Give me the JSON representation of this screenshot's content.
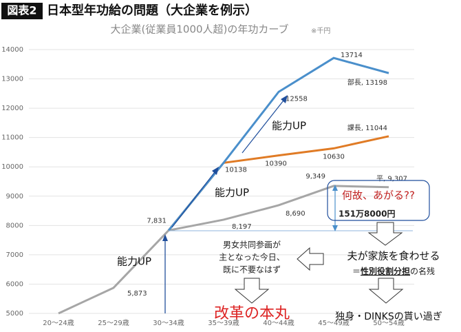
{
  "header": {
    "badge": "図表2",
    "title": "日本型年功給の問題（大企業を例示）"
  },
  "chart_data": {
    "type": "line",
    "title": "大企業(従業員1000人超)の年功カーブ",
    "unit_note": "※千円",
    "categories": [
      "20〜24歳",
      "25〜29歳",
      "30〜34歳",
      "35〜39歳",
      "40〜44歳",
      "45〜49歳",
      "50〜54歳"
    ],
    "series": [
      {
        "name": "平",
        "color": "#a6a6a6",
        "values": [
          5000,
          5873,
          7831,
          8197,
          8690,
          9349,
          9307
        ],
        "value_labels": [
          null,
          "5,873",
          "7,831",
          "8,197",
          "8,690",
          "9,349",
          "平, 9,307"
        ]
      },
      {
        "name": "課長",
        "color": "#e07b25",
        "values": [
          null,
          null,
          7831,
          10138,
          10390,
          10630,
          11044
        ],
        "value_labels": [
          null,
          null,
          null,
          "10138",
          "10390",
          "10630",
          "課長, 11044"
        ]
      },
      {
        "name": "部長",
        "color": "#4a8fcb",
        "values": [
          null,
          null,
          7831,
          10138,
          12558,
          13714,
          13198
        ],
        "value_labels": [
          null,
          null,
          null,
          null,
          "12558",
          "13714",
          "部長, 13198"
        ]
      }
    ],
    "ylim": [
      5000,
      14000
    ],
    "yticks": [
      5000,
      6000,
      7000,
      8000,
      9000,
      10000,
      11000,
      12000,
      13000,
      14000
    ],
    "grid": true,
    "annotations": {
      "ability_up_1": "能力UP",
      "ability_up_2": "能力UP",
      "ability_up_3": "能力UP",
      "why": "何故、あがる??",
      "gap": "151万8000円",
      "gender_equality": [
        "男女共同参画が",
        "主となった今日、",
        "既に不要なはず"
      ],
      "breadwinner": "夫が家族を食わせる",
      "role_prefix": "＝",
      "role_core": "性別役割分担",
      "role_suffix": "の名残",
      "reform": "改革の本丸",
      "overpaid": "独身・DINKSの貰い過ぎ"
    }
  }
}
